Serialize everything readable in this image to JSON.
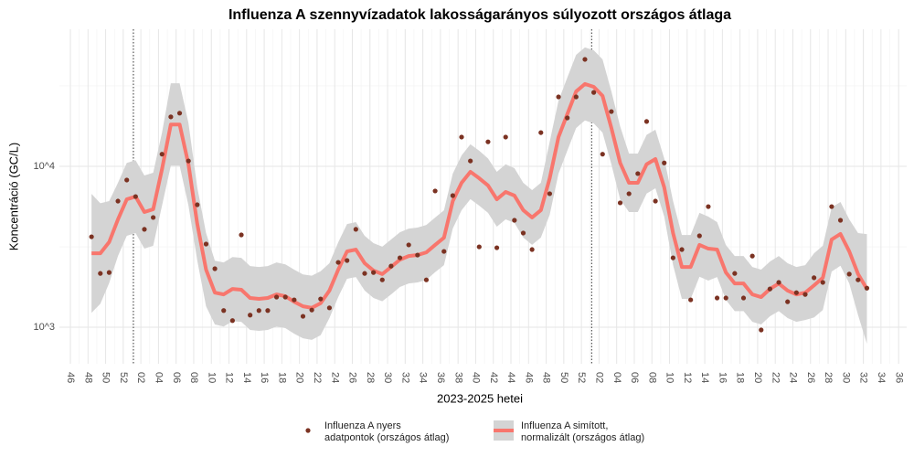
{
  "chart_data": {
    "type": "line",
    "title": "Influenza A szennyvízadatok lakosságarányos súlyozott országos átlaga",
    "x_label": "2023-2025 hetei",
    "y_label": "Koncentráció (GC/L)",
    "log_y": true,
    "grid": true,
    "legend_position": "bottom",
    "ylim": [
      593,
      71100
    ],
    "yticks": [
      {
        "value": 1000,
        "label": "10^3"
      },
      {
        "value": 10000,
        "label": "10^4"
      }
    ],
    "categories": [
      "46",
      null,
      "48",
      null,
      "50",
      null,
      "52",
      null,
      "02",
      null,
      "04",
      null,
      "06",
      null,
      "08",
      null,
      "10",
      null,
      "12",
      null,
      "14",
      null,
      "16",
      null,
      "18",
      null,
      "20",
      null,
      "22",
      null,
      "24",
      null,
      "26",
      null,
      "28",
      null,
      "30",
      null,
      "32",
      null,
      "34",
      null,
      "36",
      null,
      "38",
      null,
      "40",
      null,
      "42",
      null,
      "44",
      null,
      "46",
      null,
      "48",
      null,
      "50",
      null,
      "52",
      null,
      "02",
      null,
      "04",
      null,
      "06",
      null,
      "08",
      null,
      "10",
      null,
      "12",
      null,
      "14",
      null,
      "16",
      null,
      "18",
      null,
      "20",
      null,
      "22",
      null,
      "24",
      null,
      "26",
      null,
      "28",
      null,
      "30",
      null,
      "32",
      null,
      "34",
      null,
      "36"
    ],
    "series": [
      {
        "name": "Influenza A nyers\n adatpontok (országos átlag)",
        "type": "scatter",
        "color": "#7b3222",
        "values": [
          null,
          null,
          3650,
          2160,
          2190,
          6080,
          8220,
          6490,
          4060,
          4810,
          11900,
          20300,
          21400,
          10800,
          5770,
          3290,
          2310,
          1270,
          1100,
          3750,
          1190,
          1270,
          1270,
          1540,
          1540,
          1480,
          1170,
          1280,
          1500,
          1320,
          2530,
          2600,
          4060,
          2160,
          2190,
          1970,
          2400,
          2700,
          3250,
          2810,
          1970,
          7030,
          2960,
          6580,
          15200,
          10800,
          3160,
          14200,
          3120,
          15200,
          4620,
          3850,
          3040,
          16200,
          6760,
          27000,
          20000,
          27000,
          46200,
          28800,
          11900,
          21900,
          5930,
          6760,
          9010,
          19000,
          6080,
          10500,
          2700,
          3040,
          1480,
          3700,
          5620,
          1520,
          1520,
          2160,
          1520,
          2770,
          962,
          1730,
          1900,
          1440,
          1640,
          1600,
          2030,
          1900,
          5620,
          4620,
          2140,
          1970,
          1750,
          null,
          null,
          null,
          null
        ]
      },
      {
        "name": "Influenza A simított,\n normalizált (országos átlag)",
        "type": "line",
        "color": "#f8766d",
        "band_color": "#d4d4d4",
        "values": [
          null,
          null,
          2880,
          2880,
          3380,
          4680,
          6240,
          6490,
          5200,
          5410,
          9610,
          18200,
          18200,
          10300,
          4390,
          2280,
          1640,
          1600,
          1730,
          1710,
          1520,
          1500,
          1520,
          1600,
          1560,
          1440,
          1350,
          1320,
          1410,
          1690,
          2280,
          2960,
          3040,
          2500,
          2250,
          2140,
          2370,
          2630,
          2770,
          2810,
          2920,
          3250,
          3600,
          6080,
          7900,
          9250,
          8430,
          7600,
          6240,
          6930,
          6580,
          5340,
          4810,
          5340,
          8430,
          15200,
          21100,
          29200,
          32500,
          31200,
          27400,
          17300,
          10500,
          7900,
          7900,
          10300,
          11100,
          7400,
          3850,
          2370,
          2370,
          3250,
          3080,
          3040,
          2190,
          1870,
          1870,
          1600,
          1540,
          1730,
          1870,
          1690,
          1600,
          1640,
          1820,
          2030,
          3510,
          3800,
          2960,
          2140,
          1730,
          null,
          null,
          null,
          null
        ],
        "upper": [
          null,
          null,
          6740,
          5900,
          6080,
          7900,
          10500,
          10900,
          8770,
          9130,
          16200,
          32800,
          32800,
          18600,
          7410,
          3850,
          2590,
          2530,
          2730,
          2700,
          2400,
          2370,
          2400,
          2530,
          2460,
          2280,
          2130,
          2090,
          2230,
          2500,
          3370,
          4380,
          4500,
          3700,
          3330,
          3170,
          3510,
          3890,
          4100,
          4160,
          4320,
          4810,
          5330,
          9000,
          11700,
          13700,
          12500,
          11200,
          9240,
          10300,
          9740,
          7900,
          7120,
          7900,
          14200,
          25600,
          35600,
          49300,
          54800,
          52600,
          46200,
          29200,
          17700,
          12000,
          12000,
          15700,
          16900,
          11200,
          6080,
          3740,
          3740,
          5140,
          4870,
          4500,
          3240,
          2770,
          2770,
          2370,
          2280,
          2560,
          2770,
          2500,
          2370,
          2430,
          2880,
          3210,
          5550,
          6000,
          4680,
          3850,
          3790,
          null,
          null,
          null,
          null
        ],
        "lower": [
          null,
          null,
          1230,
          1400,
          1880,
          2770,
          3700,
          3850,
          3080,
          3210,
          5700,
          10100,
          10100,
          5720,
          2600,
          1350,
          1040,
          1010,
          1090,
          1080,
          962,
          949,
          962,
          1010,
          987,
          911,
          854,
          835,
          892,
          1140,
          1540,
          2000,
          2050,
          1690,
          1520,
          1450,
          1600,
          1780,
          1870,
          1900,
          1970,
          2200,
          2430,
          4110,
          5340,
          6250,
          5700,
          5140,
          4220,
          4680,
          4450,
          3610,
          3250,
          3610,
          5000,
          9010,
          12500,
          17300,
          19300,
          18500,
          16200,
          10300,
          6220,
          5200,
          5200,
          6780,
          7300,
          4870,
          2440,
          1500,
          1500,
          2060,
          1950,
          2050,
          1480,
          1260,
          1260,
          1080,
          1040,
          1170,
          1260,
          1140,
          1080,
          1110,
          1150,
          1280,
          2220,
          2410,
          1870,
          1190,
          790,
          null,
          null,
          null,
          null
        ]
      }
    ]
  }
}
